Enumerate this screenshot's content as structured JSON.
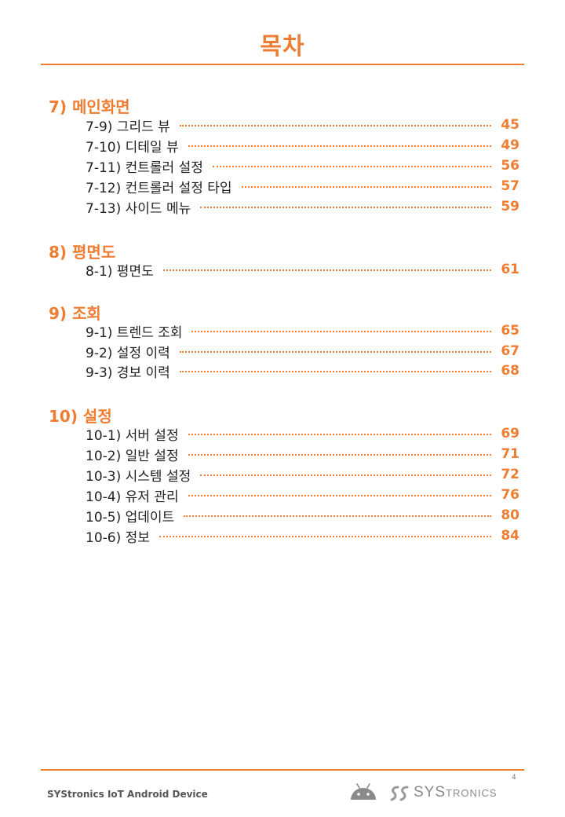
{
  "page": {
    "title": "목차",
    "page_number": "4",
    "footer_text": "SYStronics IoT Android Device",
    "brand": {
      "part1": "SYS",
      "part2": "TRONICS"
    }
  },
  "colors": {
    "accent": "#ee7d31",
    "text": "#222222",
    "footer": "#555555"
  },
  "icons": {
    "android": "android-robot-icon",
    "brand": "systronics-logo-mark"
  },
  "sections": [
    {
      "heading": "7) 메인화면",
      "entries": [
        {
          "label": "7-9) 그리드 뷰",
          "page": "45"
        },
        {
          "label": "7-10) 디테일 뷰",
          "page": "49"
        },
        {
          "label": "7-11) 컨트롤러 설정",
          "page": "56"
        },
        {
          "label": "7-12) 컨트롤러 설정 타입",
          "page": "57"
        },
        {
          "label": "7-13) 사이드 메뉴",
          "page": "59"
        }
      ]
    },
    {
      "heading": "8) 평면도",
      "entries": [
        {
          "label": "8-1) 평면도",
          "page": "61"
        }
      ]
    },
    {
      "heading": "9) 조회",
      "entries": [
        {
          "label": "9-1) 트렌드 조회",
          "page": "65"
        },
        {
          "label": "9-2) 설정 이력",
          "page": "67"
        },
        {
          "label": "9-3) 경보 이력",
          "page": "68"
        }
      ]
    },
    {
      "heading": "10) 설정",
      "entries": [
        {
          "label": "10-1) 서버 설정",
          "page": "69"
        },
        {
          "label": "10-2) 일반 설정",
          "page": "71"
        },
        {
          "label": "10-3) 시스템 설정",
          "page": "72"
        },
        {
          "label": "10-4) 유저 관리",
          "page": "76"
        },
        {
          "label": "10-5) 업데이트",
          "page": "80"
        },
        {
          "label": "10-6) 정보",
          "page": "84"
        }
      ]
    }
  ]
}
